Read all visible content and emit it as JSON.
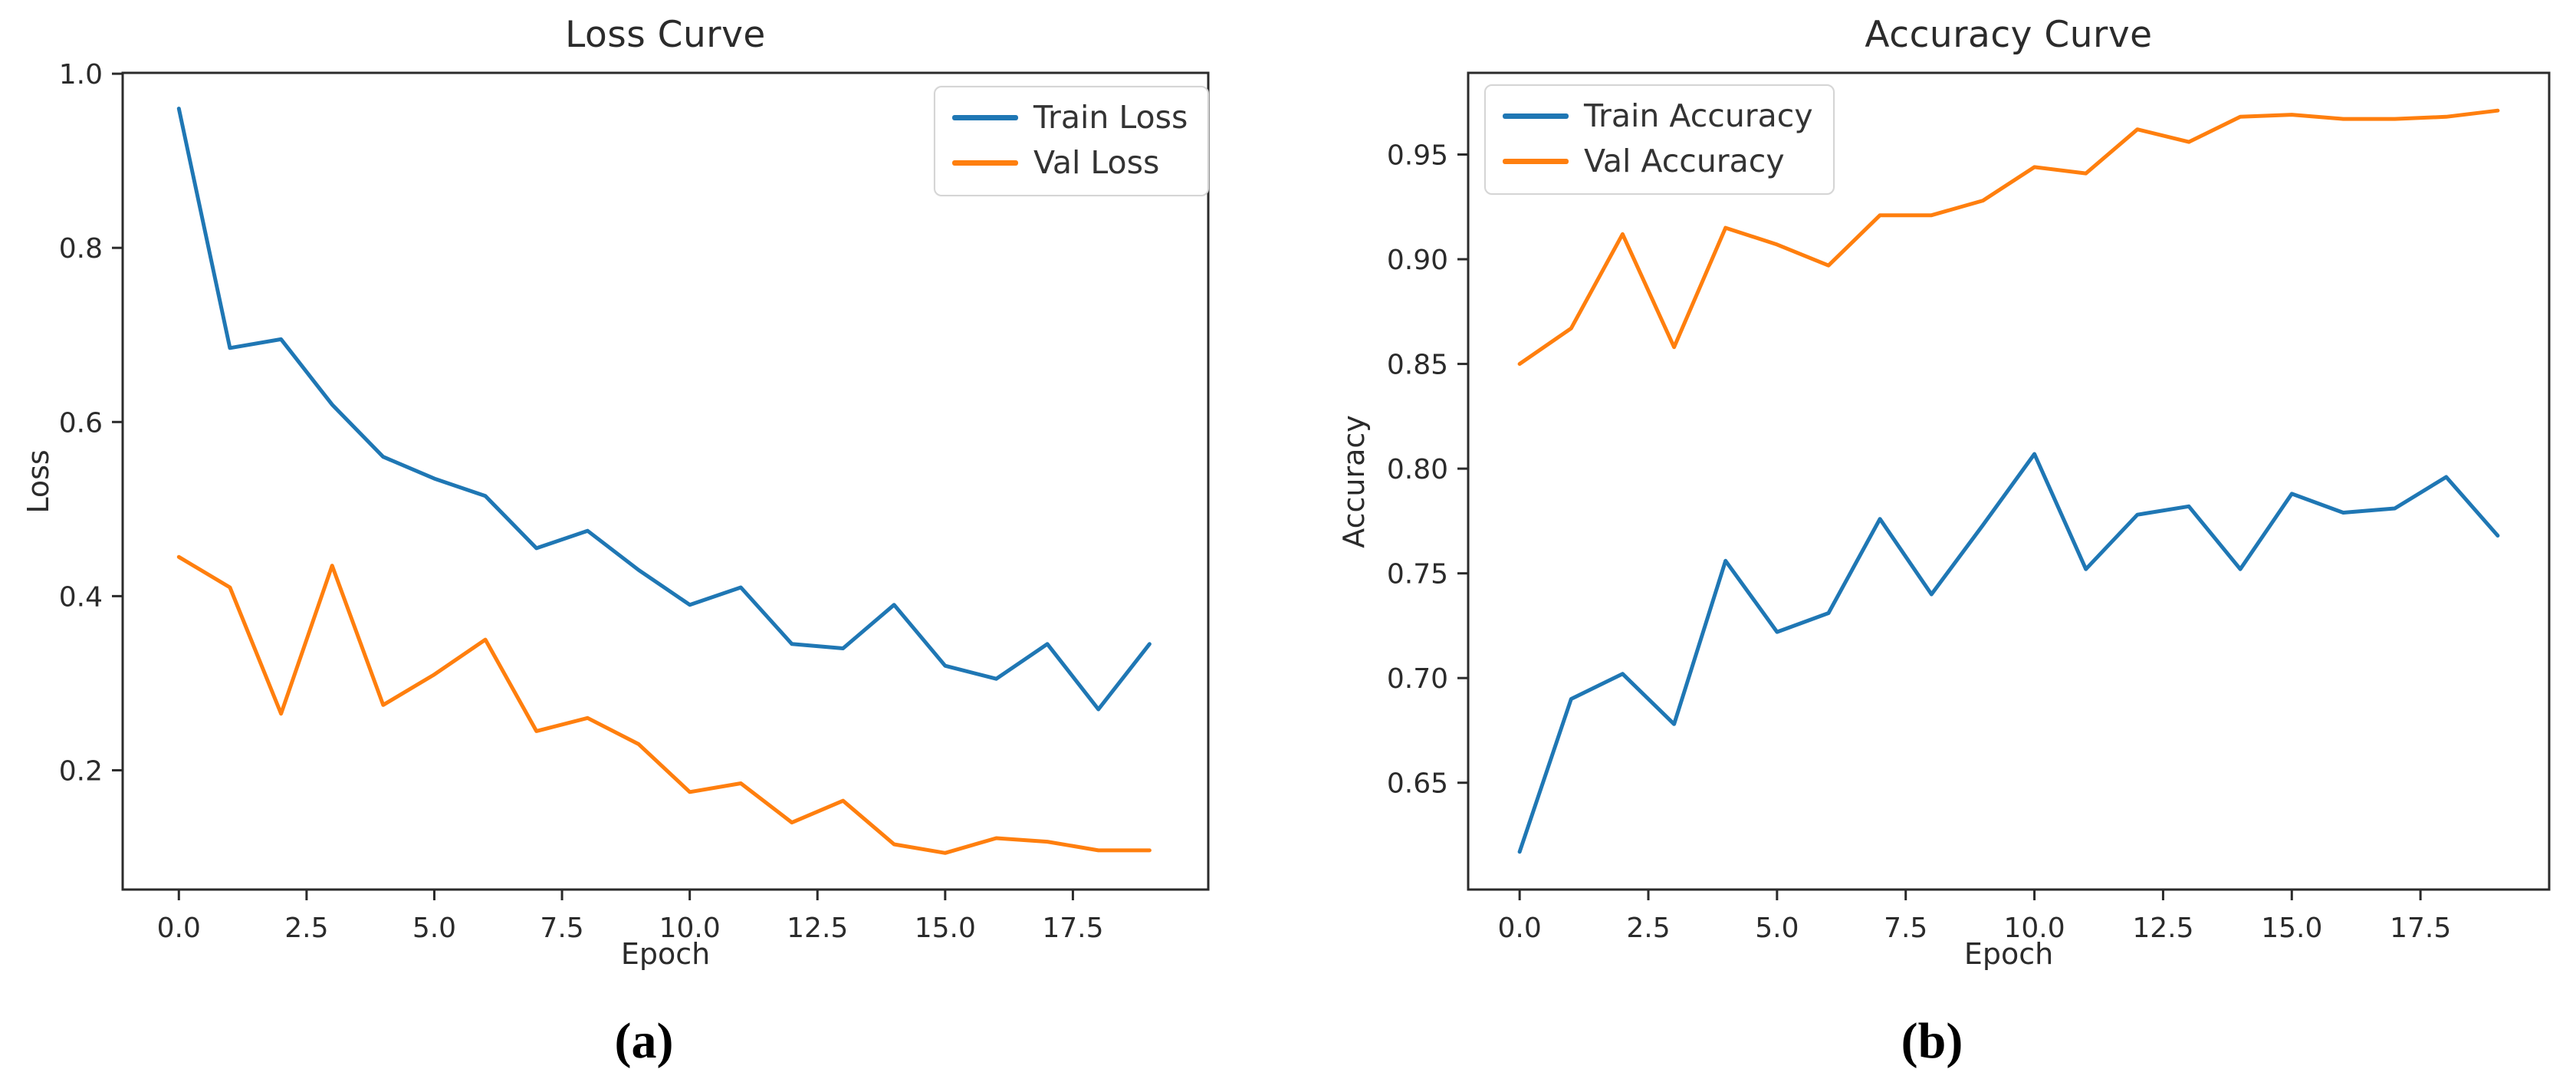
{
  "figure": {
    "background": "#ffffff",
    "captions": {
      "a": "(a)",
      "b": "(b)"
    }
  },
  "colors": {
    "train": "#1f77b4",
    "val": "#ff7f0e",
    "axis": "#2b2b2b",
    "text": "#2b2b2b",
    "legend_border": "#d5d5d5"
  },
  "chart_data": [
    {
      "type": "line",
      "title": "Loss Curve",
      "xlabel": "Epoch",
      "ylabel": "Loss",
      "caption": "(a)",
      "legend_position": "top-right",
      "grid": false,
      "x": [
        0,
        1,
        2,
        3,
        4,
        5,
        6,
        7,
        8,
        9,
        10,
        11,
        12,
        13,
        14,
        15,
        16,
        17,
        18,
        19
      ],
      "xlim": [
        -1.1,
        20.15
      ],
      "ylim": [
        0.063,
        1.001
      ],
      "xticks": [
        0,
        2.5,
        5,
        7.5,
        10,
        12.5,
        15,
        17.5
      ],
      "xtick_labels": [
        "0.0",
        "2.5",
        "5.0",
        "7.5",
        "10.0",
        "12.5",
        "15.0",
        "17.5"
      ],
      "yticks": [
        0.2,
        0.4,
        0.6,
        0.8,
        1.0
      ],
      "ytick_labels": [
        "0.2",
        "0.4",
        "0.6",
        "0.8",
        "1.0"
      ],
      "series": [
        {
          "name": "Train Loss",
          "color_key": "train",
          "values": [
            0.96,
            0.685,
            0.695,
            0.62,
            0.56,
            0.535,
            0.515,
            0.455,
            0.475,
            0.43,
            0.39,
            0.41,
            0.345,
            0.34,
            0.39,
            0.32,
            0.305,
            0.345,
            0.27,
            0.345
          ]
        },
        {
          "name": "Val Loss",
          "color_key": "val",
          "values": [
            0.445,
            0.41,
            0.265,
            0.435,
            0.275,
            0.31,
            0.35,
            0.245,
            0.26,
            0.23,
            0.175,
            0.185,
            0.14,
            0.165,
            0.115,
            0.105,
            0.122,
            0.118,
            0.108,
            0.108
          ]
        }
      ]
    },
    {
      "type": "line",
      "title": "Accuracy Curve",
      "xlabel": "Epoch",
      "ylabel": "Accuracy",
      "caption": "(b)",
      "legend_position": "top-left",
      "grid": false,
      "x": [
        0,
        1,
        2,
        3,
        4,
        5,
        6,
        7,
        8,
        9,
        10,
        11,
        12,
        13,
        14,
        15,
        16,
        17,
        18,
        19
      ],
      "xlim": [
        -1.0,
        20.0
      ],
      "ylim": [
        0.599,
        0.989
      ],
      "xticks": [
        0,
        2.5,
        5,
        7.5,
        10,
        12.5,
        15,
        17.5
      ],
      "xtick_labels": [
        "0.0",
        "2.5",
        "5.0",
        "7.5",
        "10.0",
        "12.5",
        "15.0",
        "17.5"
      ],
      "yticks": [
        0.65,
        0.7,
        0.75,
        0.8,
        0.85,
        0.9,
        0.95
      ],
      "ytick_labels": [
        "0.65",
        "0.70",
        "0.75",
        "0.80",
        "0.85",
        "0.90",
        "0.95"
      ],
      "series": [
        {
          "name": "Train Accuracy",
          "color_key": "train",
          "values": [
            0.617,
            0.69,
            0.702,
            0.678,
            0.756,
            0.722,
            0.731,
            0.776,
            0.74,
            0.773,
            0.807,
            0.752,
            0.778,
            0.782,
            0.752,
            0.788,
            0.779,
            0.781,
            0.796,
            0.768
          ]
        },
        {
          "name": "Val Accuracy",
          "color_key": "val",
          "values": [
            0.85,
            0.867,
            0.912,
            0.858,
            0.915,
            0.907,
            0.897,
            0.921,
            0.921,
            0.928,
            0.944,
            0.941,
            0.962,
            0.956,
            0.968,
            0.969,
            0.967,
            0.967,
            0.968,
            0.971
          ]
        }
      ]
    }
  ]
}
